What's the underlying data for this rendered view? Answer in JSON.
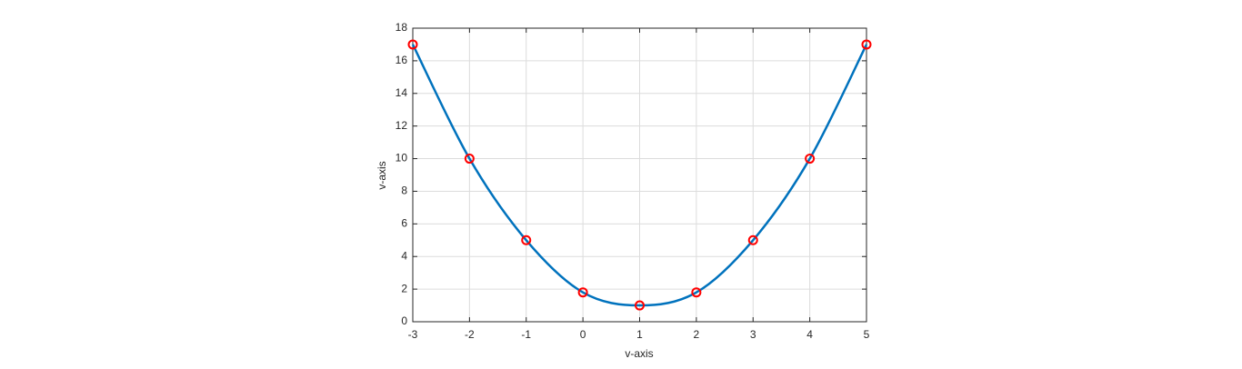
{
  "chart_data": {
    "type": "line",
    "xlabel": "v-axis",
    "ylabel": "v-axis",
    "x": [
      -3,
      -2,
      -1,
      0,
      1,
      2,
      3,
      4,
      5
    ],
    "values": [
      17,
      10,
      5,
      1.8,
      1,
      1.8,
      5,
      10,
      17
    ],
    "line_color": "#0072bd",
    "marker_color": "#ff0000",
    "xlim": [
      -3,
      5
    ],
    "xticks": [
      -3,
      -2,
      -1,
      0,
      1,
      2,
      3,
      4,
      5
    ],
    "ylim": [
      0,
      18
    ],
    "yticks": [
      0,
      2,
      4,
      6,
      8,
      10,
      12,
      14,
      16,
      18
    ],
    "grid": true
  }
}
